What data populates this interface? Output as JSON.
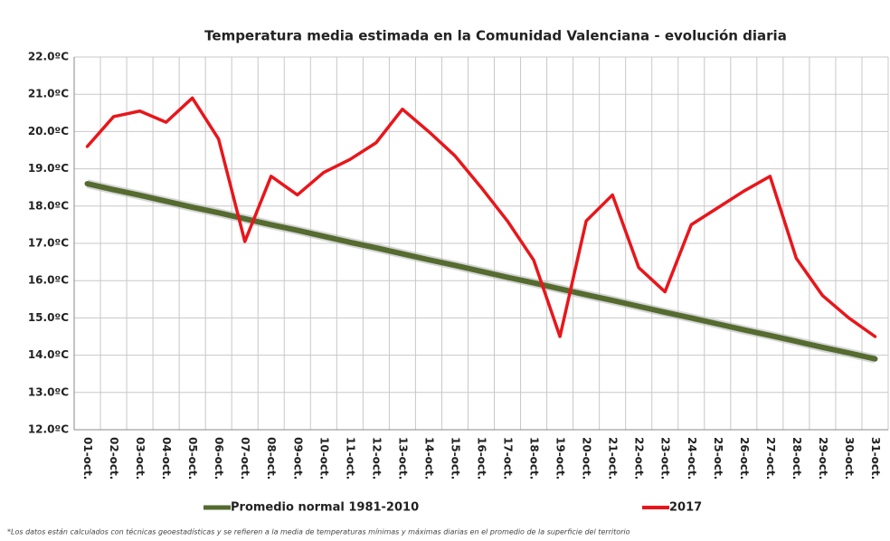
{
  "chart_data": {
    "type": "line",
    "title": "Temperatura  media estimada en la Comunidad Valenciana - evolución diaria",
    "categories": [
      "01-oct.",
      "02-oct.",
      "03-oct.",
      "04-oct.",
      "05-oct.",
      "06-oct.",
      "07-oct.",
      "08-oct.",
      "09-oct.",
      "10-oct.",
      "11-oct.",
      "12-oct.",
      "13-oct.",
      "14-oct.",
      "15-oct.",
      "16-oct.",
      "17-oct.",
      "18-oct.",
      "19-oct.",
      "20-oct.",
      "21-oct.",
      "22-oct.",
      "23-oct.",
      "24-oct.",
      "25-oct.",
      "26-oct.",
      "27-oct.",
      "28-oct.",
      "29-oct.",
      "30-oct.",
      "31-oct."
    ],
    "series": [
      {
        "name": "Promedio normal 1981-2010",
        "color": "#556b2f",
        "values": [
          18.6,
          18.44,
          18.29,
          18.13,
          17.97,
          17.82,
          17.66,
          17.5,
          17.35,
          17.19,
          17.03,
          16.88,
          16.72,
          16.56,
          16.41,
          16.25,
          16.09,
          15.94,
          15.78,
          15.62,
          15.47,
          15.31,
          15.15,
          15.0,
          14.84,
          14.68,
          14.53,
          14.37,
          14.21,
          14.06,
          13.9
        ]
      },
      {
        "name": "2017",
        "color": "#e8161b",
        "values": [
          19.6,
          20.4,
          20.55,
          20.25,
          20.9,
          19.8,
          17.05,
          18.8,
          18.3,
          18.9,
          19.25,
          19.7,
          20.6,
          20.0,
          19.35,
          18.5,
          17.6,
          16.55,
          14.5,
          17.6,
          18.3,
          16.35,
          15.7,
          17.5,
          17.95,
          18.4,
          18.8,
          16.6,
          15.6,
          15.0,
          14.5
        ]
      }
    ],
    "ylim": [
      12,
      22
    ],
    "yticks": [
      {
        "value": 12,
        "label": "12.0ºC"
      },
      {
        "value": 13,
        "label": "13.0ºC"
      },
      {
        "value": 14,
        "label": "14.0ºC"
      },
      {
        "value": 15,
        "label": "15.0ºC"
      },
      {
        "value": 16,
        "label": "16.0ºC"
      },
      {
        "value": 17,
        "label": "17.0ºC"
      },
      {
        "value": 18,
        "label": "18.0ºC"
      },
      {
        "value": 19,
        "label": "19.0ºC"
      },
      {
        "value": 20,
        "label": "20.0ºC"
      },
      {
        "value": 21,
        "label": "21.0ºC"
      },
      {
        "value": 22,
        "label": "22.0ºC"
      }
    ],
    "grid": true,
    "legend": "bottom",
    "footnote": "*Los datos están calculados con técnicas geoestadísticas y se refieren a la media de temperaturas mínimas y máximas diarias en el promedio de la superficie del territorio"
  }
}
